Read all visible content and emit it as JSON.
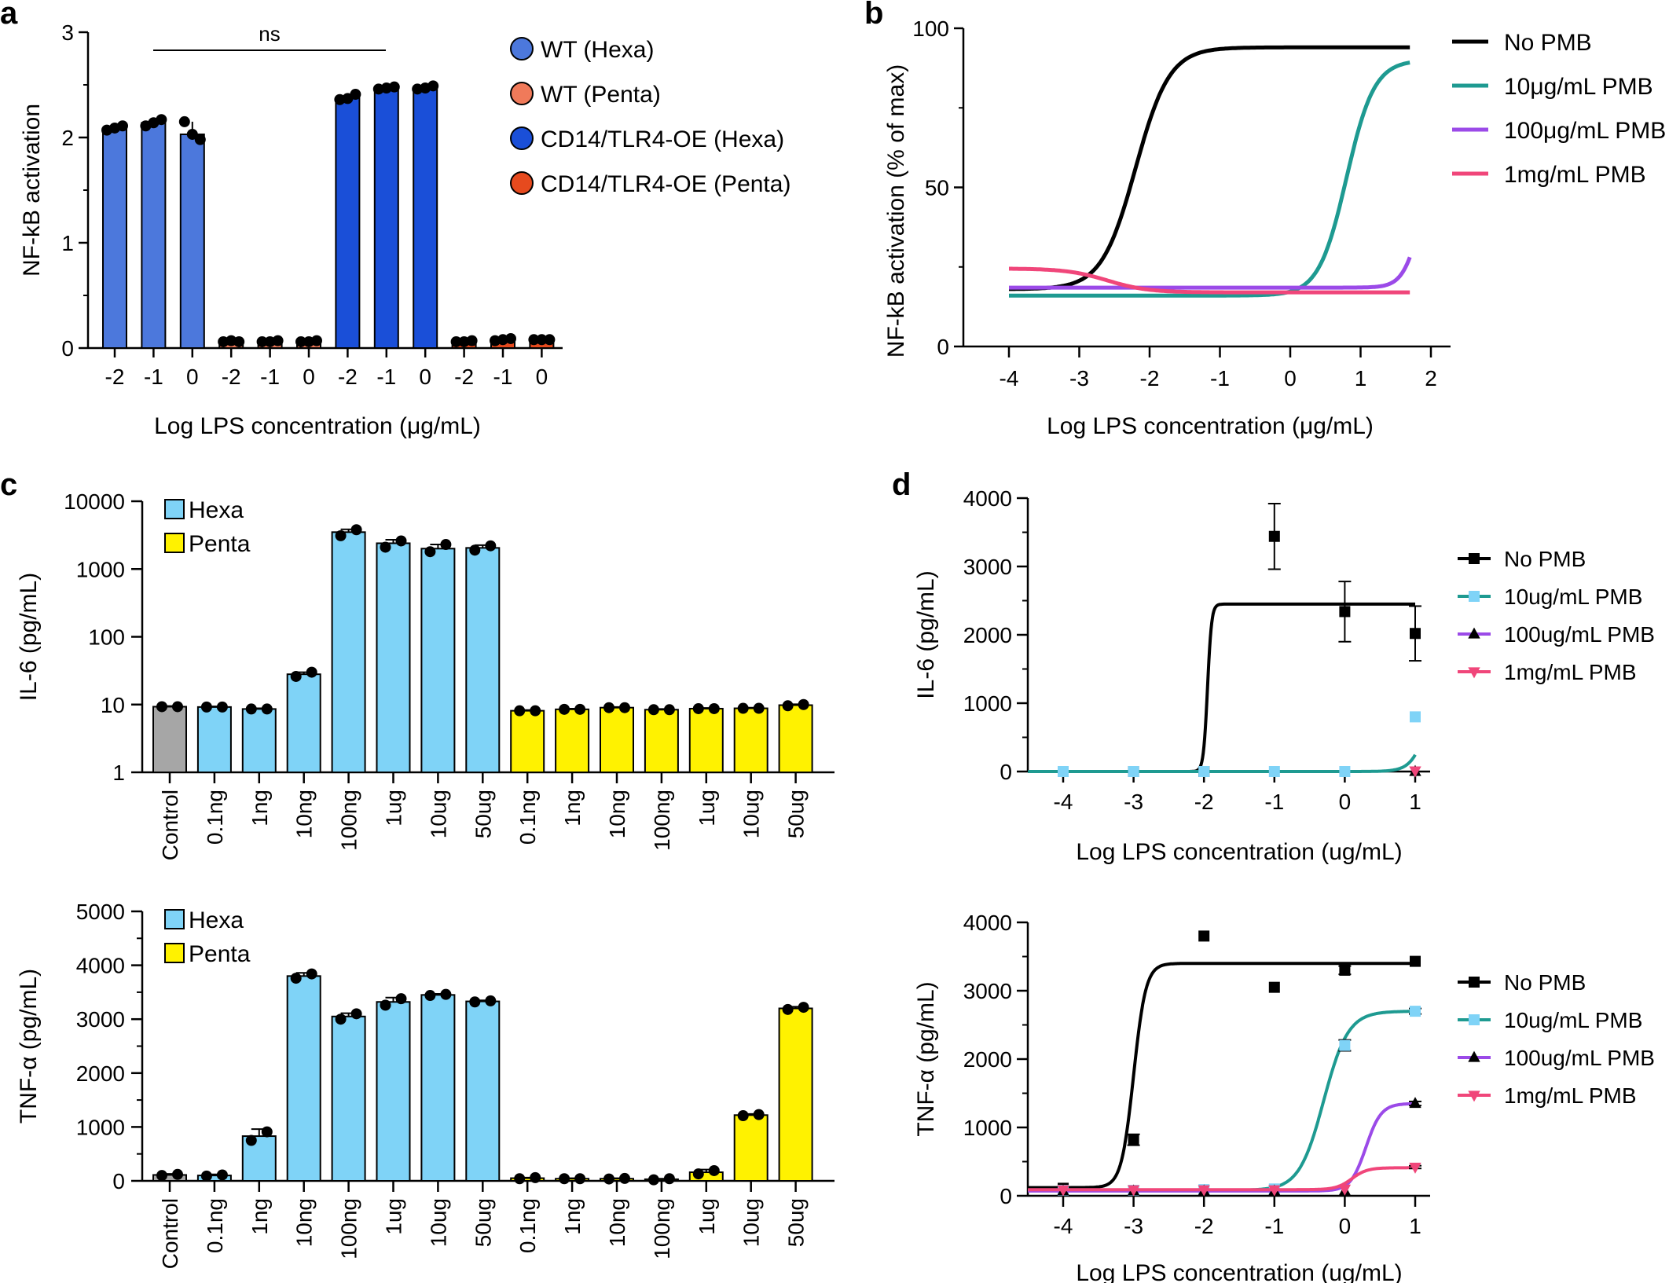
{
  "colors": {
    "wt_hexa": "#4C78DC",
    "wt_penta": "#F07A5A",
    "oe_hexa": "#1A4FD8",
    "oe_penta": "#E64A1E",
    "hexa": "#7FD3F7",
    "penta": "#FFF200",
    "control": "#A6A6A6",
    "no_pmb": "#000000",
    "pmb10": "#1E9A91",
    "pmb100": "#9B4AE8",
    "pmb1000": "#F0467A",
    "pmb10_light": "#7FD3F7"
  },
  "chart_data": [
    {
      "panel": "a",
      "type": "bar",
      "ylabel": "NF-kB activation",
      "xlabel": "Log LPS concentration (μg/mL)",
      "ylim": [
        0,
        3
      ],
      "yticks": [
        "0",
        "1",
        "2",
        "3"
      ],
      "categories": [
        "-2",
        "-1",
        "0",
        "-2",
        "-1",
        "0",
        "-2",
        "-1",
        "0",
        "-2",
        "-1",
        "0"
      ],
      "values": [
        2.09,
        2.14,
        2.03,
        0.06,
        0.06,
        0.06,
        2.38,
        2.47,
        2.47,
        0.06,
        0.08,
        0.08
      ],
      "points": [
        [
          2.07,
          2.11,
          2.09
        ],
        [
          2.11,
          2.17,
          2.14
        ],
        [
          2.15,
          1.98,
          2.03
        ],
        [
          0.06,
          0.06,
          0.07
        ],
        [
          0.06,
          0.07,
          0.06
        ],
        [
          0.06,
          0.07,
          0.06
        ],
        [
          2.36,
          2.41,
          2.37
        ],
        [
          2.46,
          2.48,
          2.47
        ],
        [
          2.46,
          2.49,
          2.47
        ],
        [
          0.06,
          0.07,
          0.06
        ],
        [
          0.07,
          0.09,
          0.08
        ],
        [
          0.08,
          0.08,
          0.08
        ]
      ],
      "bar_groups": [
        "WT (Hexa)",
        "WT (Hexa)",
        "WT (Hexa)",
        "WT (Penta)",
        "WT (Penta)",
        "WT (Penta)",
        "CD14/TLR4-OE (Hexa)",
        "CD14/TLR4-OE (Hexa)",
        "CD14/TLR4-OE (Hexa)",
        "CD14/TLR4-OE (Penta)",
        "CD14/TLR4-OE (Penta)",
        "CD14/TLR4-OE (Penta)"
      ],
      "legend": [
        "WT (Hexa)",
        "WT (Penta)",
        "CD14/TLR4-OE (Hexa)",
        "CD14/TLR4-OE (Penta)"
      ],
      "annotation": "ns"
    },
    {
      "panel": "b",
      "type": "line",
      "ylabel": "NF-kB activation (% of max)",
      "xlabel": "Log LPS concentration (μg/mL)",
      "xlim": [
        -4,
        2
      ],
      "ylim": [
        0,
        100
      ],
      "xticks": [
        "-4",
        "-3",
        "-2",
        "-1",
        "0",
        "1",
        "2"
      ],
      "yticks": [
        "0",
        "50",
        "100"
      ],
      "series": [
        {
          "name": "No PMB",
          "bottom": 18,
          "top": 94,
          "ec50": -2.2,
          "hill": 1.8
        },
        {
          "name": "10μg/mL PMB",
          "bottom": 16,
          "top": 90,
          "ec50": 0.8,
          "hill": 2.2
        },
        {
          "name": "100μg/mL PMB",
          "bottom": 18.5,
          "top": 60,
          "ec50": 1.85,
          "hill": 3.5
        },
        {
          "name": "1mg/mL PMB",
          "bottom": 17,
          "top": 24.5,
          "ec50": -2.6,
          "hill": -1.5
        }
      ]
    },
    {
      "panel": "c-top",
      "type": "bar",
      "yscale": "log",
      "ylabel": "IL-6 (pg/mL)",
      "ylim": [
        1,
        10000
      ],
      "yticks": [
        "1",
        "10",
        "100",
        "1000",
        "10000"
      ],
      "categories": [
        "Control",
        "0.1ng",
        "1ng",
        "10ng",
        "100ng",
        "1ug",
        "10ug",
        "50ug",
        "0.1ng",
        "1ng",
        "10ng",
        "100ng",
        "1ug",
        "10ug",
        "50ug"
      ],
      "values": [
        9.3,
        9.2,
        8.6,
        28,
        3500,
        2400,
        2000,
        2050,
        8.1,
        8.5,
        9.0,
        8.4,
        8.7,
        8.8,
        9.8
      ],
      "errors": [
        0.2,
        0.2,
        0.2,
        2,
        350,
        300,
        300,
        200,
        0.2,
        0.2,
        0.2,
        0.2,
        0.2,
        0.2,
        0.3
      ],
      "points": [
        [
          9.3,
          9.3
        ],
        [
          9.2,
          9.2
        ],
        [
          8.6,
          8.6
        ],
        [
          26,
          30
        ],
        [
          3100,
          3800
        ],
        [
          2100,
          2600
        ],
        [
          1800,
          2300
        ],
        [
          1900,
          2200
        ],
        [
          8.1,
          8.1
        ],
        [
          8.5,
          8.5
        ],
        [
          9.0,
          9.0
        ],
        [
          8.4,
          8.4
        ],
        [
          8.7,
          8.7
        ],
        [
          8.8,
          8.8
        ],
        [
          9.6,
          10
        ]
      ],
      "bar_groups": [
        "Control",
        "Hexa",
        "Hexa",
        "Hexa",
        "Hexa",
        "Hexa",
        "Hexa",
        "Hexa",
        "Penta",
        "Penta",
        "Penta",
        "Penta",
        "Penta",
        "Penta",
        "Penta"
      ],
      "legend": [
        "Hexa",
        "Penta"
      ]
    },
    {
      "panel": "c-bottom",
      "type": "bar",
      "ylabel": "TNF-α (pg/mL)",
      "ylim": [
        0,
        5000
      ],
      "yticks": [
        "0",
        "1000",
        "2000",
        "3000",
        "4000",
        "5000"
      ],
      "categories": [
        "Control",
        "0.1ng",
        "1ng",
        "10ng",
        "100ng",
        "1ug",
        "10ug",
        "50ug",
        "0.1ng",
        "1ng",
        "10ng",
        "100ng",
        "1ug",
        "10ug",
        "50ug"
      ],
      "values": [
        110,
        100,
        830,
        3800,
        3050,
        3320,
        3450,
        3330,
        50,
        40,
        40,
        30,
        160,
        1220,
        3200
      ],
      "errors": [
        20,
        20,
        130,
        60,
        60,
        80,
        20,
        20,
        10,
        10,
        10,
        10,
        50,
        20,
        30
      ],
      "points": [
        [
          100,
          120
        ],
        [
          90,
          110
        ],
        [
          750,
          910
        ],
        [
          3760,
          3840
        ],
        [
          3000,
          3100
        ],
        [
          3260,
          3380
        ],
        [
          3440,
          3460
        ],
        [
          3320,
          3340
        ],
        [
          40,
          60
        ],
        [
          40,
          40
        ],
        [
          35,
          45
        ],
        [
          20,
          40
        ],
        [
          130,
          190
        ],
        [
          1210,
          1230
        ],
        [
          3180,
          3220
        ]
      ],
      "bar_groups": [
        "Control",
        "Hexa",
        "Hexa",
        "Hexa",
        "Hexa",
        "Hexa",
        "Hexa",
        "Hexa",
        "Penta",
        "Penta",
        "Penta",
        "Penta",
        "Penta",
        "Penta",
        "Penta"
      ],
      "legend": [
        "Hexa",
        "Penta"
      ]
    },
    {
      "panel": "d-top",
      "type": "line",
      "ylabel": "IL-6 (pg/mL)",
      "xlabel": "Log LPS concentration (ug/mL)",
      "xlim": [
        -4.5,
        1.1
      ],
      "ylim": [
        0,
        4000
      ],
      "xticks": [
        "-4",
        "-3",
        "-2",
        "-1",
        "0",
        "1"
      ],
      "yticks": [
        "0",
        "1000",
        "2000",
        "3000",
        "4000"
      ],
      "series": [
        {
          "name": "No PMB",
          "bottom": 0,
          "top": 2450,
          "ec50": -1.95,
          "hill": 15,
          "x": [
            -4,
            -3,
            -2,
            -1,
            0,
            1
          ],
          "y": [
            0,
            0,
            0,
            3440,
            2340,
            2020
          ],
          "err": [
            0,
            0,
            0,
            480,
            440,
            400
          ],
          "marker": "square"
        },
        {
          "name": "10ug/mL PMB",
          "bottom": 0,
          "top": 3000,
          "ec50": 1.3,
          "hill": 3.5,
          "x": [
            -4,
            -3,
            -2,
            -1,
            0,
            1
          ],
          "y": [
            0,
            0,
            0,
            0,
            0,
            800
          ],
          "err": [
            0,
            0,
            0,
            0,
            0,
            0
          ],
          "marker": "square"
        },
        {
          "name": "100ug/mL PMB",
          "bottom": 0,
          "top": 0,
          "ec50": 0,
          "hill": 1,
          "x": [
            1
          ],
          "y": [
            0
          ],
          "err": [
            0
          ],
          "marker": "triangle-up"
        },
        {
          "name": "1mg/mL PMB",
          "bottom": 0,
          "top": 0,
          "ec50": 0,
          "hill": 1,
          "x": [
            1
          ],
          "y": [
            10
          ],
          "err": [
            0
          ],
          "marker": "triangle-down"
        }
      ]
    },
    {
      "panel": "d-bottom",
      "type": "line",
      "ylabel": "TNF-α (pg/mL)",
      "xlabel": "Log LPS concentration (ug/mL)",
      "xlim": [
        -4.5,
        1.1
      ],
      "ylim": [
        0,
        4000
      ],
      "xticks": [
        "-4",
        "-3",
        "-2",
        "-1",
        "0",
        "1"
      ],
      "yticks": [
        "0",
        "1000",
        "2000",
        "3000",
        "4000"
      ],
      "series": [
        {
          "name": "No PMB",
          "bottom": 120,
          "top": 3400,
          "ec50": -3.0,
          "hill": 5,
          "x": [
            -4,
            -3,
            -2,
            -1,
            0,
            1
          ],
          "y": [
            110,
            820,
            3800,
            3050,
            3300,
            3430
          ],
          "err": [
            0,
            80,
            0,
            0,
            60,
            0
          ],
          "marker": "square"
        },
        {
          "name": "10ug/mL PMB",
          "bottom": 80,
          "top": 2700,
          "ec50": -0.3,
          "hill": 2.5,
          "x": [
            -4,
            -3,
            -2,
            -1,
            0,
            1
          ],
          "y": [
            80,
            80,
            90,
            100,
            2200,
            2700
          ],
          "err": [
            0,
            0,
            0,
            0,
            80,
            40
          ],
          "marker": "square"
        },
        {
          "name": "100ug/mL PMB",
          "bottom": 70,
          "top": 1350,
          "ec50": 0.3,
          "hill": 4,
          "x": [
            -4,
            -3,
            -2,
            -1,
            0,
            1
          ],
          "y": [
            70,
            70,
            70,
            70,
            70,
            1350
          ],
          "err": [
            0,
            0,
            0,
            0,
            0,
            30
          ],
          "marker": "triangle-up"
        },
        {
          "name": "1mg/mL PMB",
          "bottom": 90,
          "top": 410,
          "ec50": 0.1,
          "hill": 4,
          "x": [
            -4,
            -3,
            -2,
            -1,
            0,
            1
          ],
          "y": [
            90,
            90,
            90,
            90,
            100,
            420
          ],
          "err": [
            0,
            0,
            0,
            0,
            0,
            20
          ],
          "marker": "triangle-down"
        }
      ]
    }
  ],
  "panel_labels": [
    "a",
    "b",
    "c",
    "d"
  ]
}
